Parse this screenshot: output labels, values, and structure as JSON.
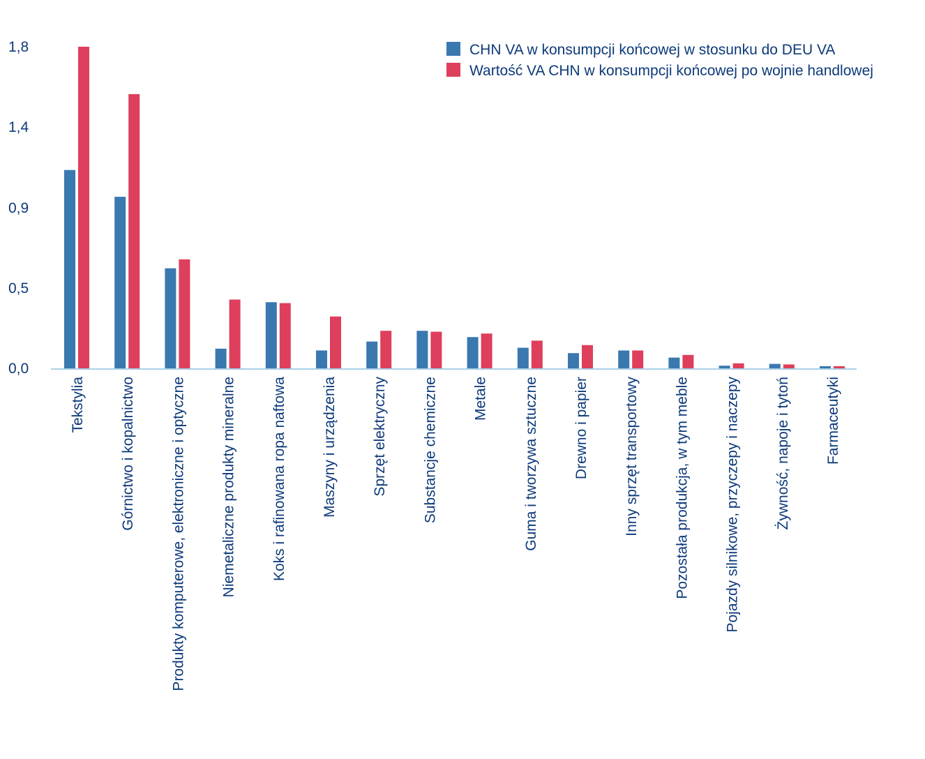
{
  "chart_data": {
    "type": "bar",
    "categories": [
      "Tekstylia",
      "Górnictwo i kopalnictwo",
      "Produkty komputerowe, elektroniczne i optyczne",
      "Niemetaliczne produkty mineralne",
      "Koks i rafinowana ropa naftowa",
      "Maszyny i urządzenia",
      "Sprzęt elektryczny",
      "Substancje chemiczne",
      "Metale",
      "Guma i tworzywa sztuczne",
      "Drewno i papier",
      "Inny sprzęt transportowy",
      "Pozostała produkcja, w tym meble",
      "Pojazdy silnikowe, przyczepy i naczepy",
      "Żywność, napoje i tytoń",
      "Farmaceutyki"
    ],
    "series": [
      {
        "name": "CHN VA w konsumpcji końcowej w stosunku do DEU VA",
        "color": "#3a78b0",
        "values": [
          1.11,
          0.96,
          0.56,
          0.11,
          0.37,
          0.1,
          0.15,
          0.21,
          0.175,
          0.115,
          0.085,
          0.1,
          0.06,
          0.015,
          0.025,
          0.012
        ]
      },
      {
        "name": "Wartość VA CHN w konsumpcji końcowej po wojnie handlowej",
        "color": "#de3f5c",
        "values": [
          1.8,
          1.535,
          0.61,
          0.385,
          0.365,
          0.29,
          0.21,
          0.205,
          0.195,
          0.155,
          0.13,
          0.1,
          0.075,
          0.028,
          0.022,
          0.012
        ]
      }
    ],
    "y_ticks": [
      "0,0",
      "0,5",
      "0,9",
      "1,4",
      "1,8"
    ],
    "ylim": [
      0,
      1.8
    ],
    "grid": false,
    "legend_position": "top-right",
    "axis_color": "#a9d0e8",
    "text_color": "#0d3a7a"
  }
}
